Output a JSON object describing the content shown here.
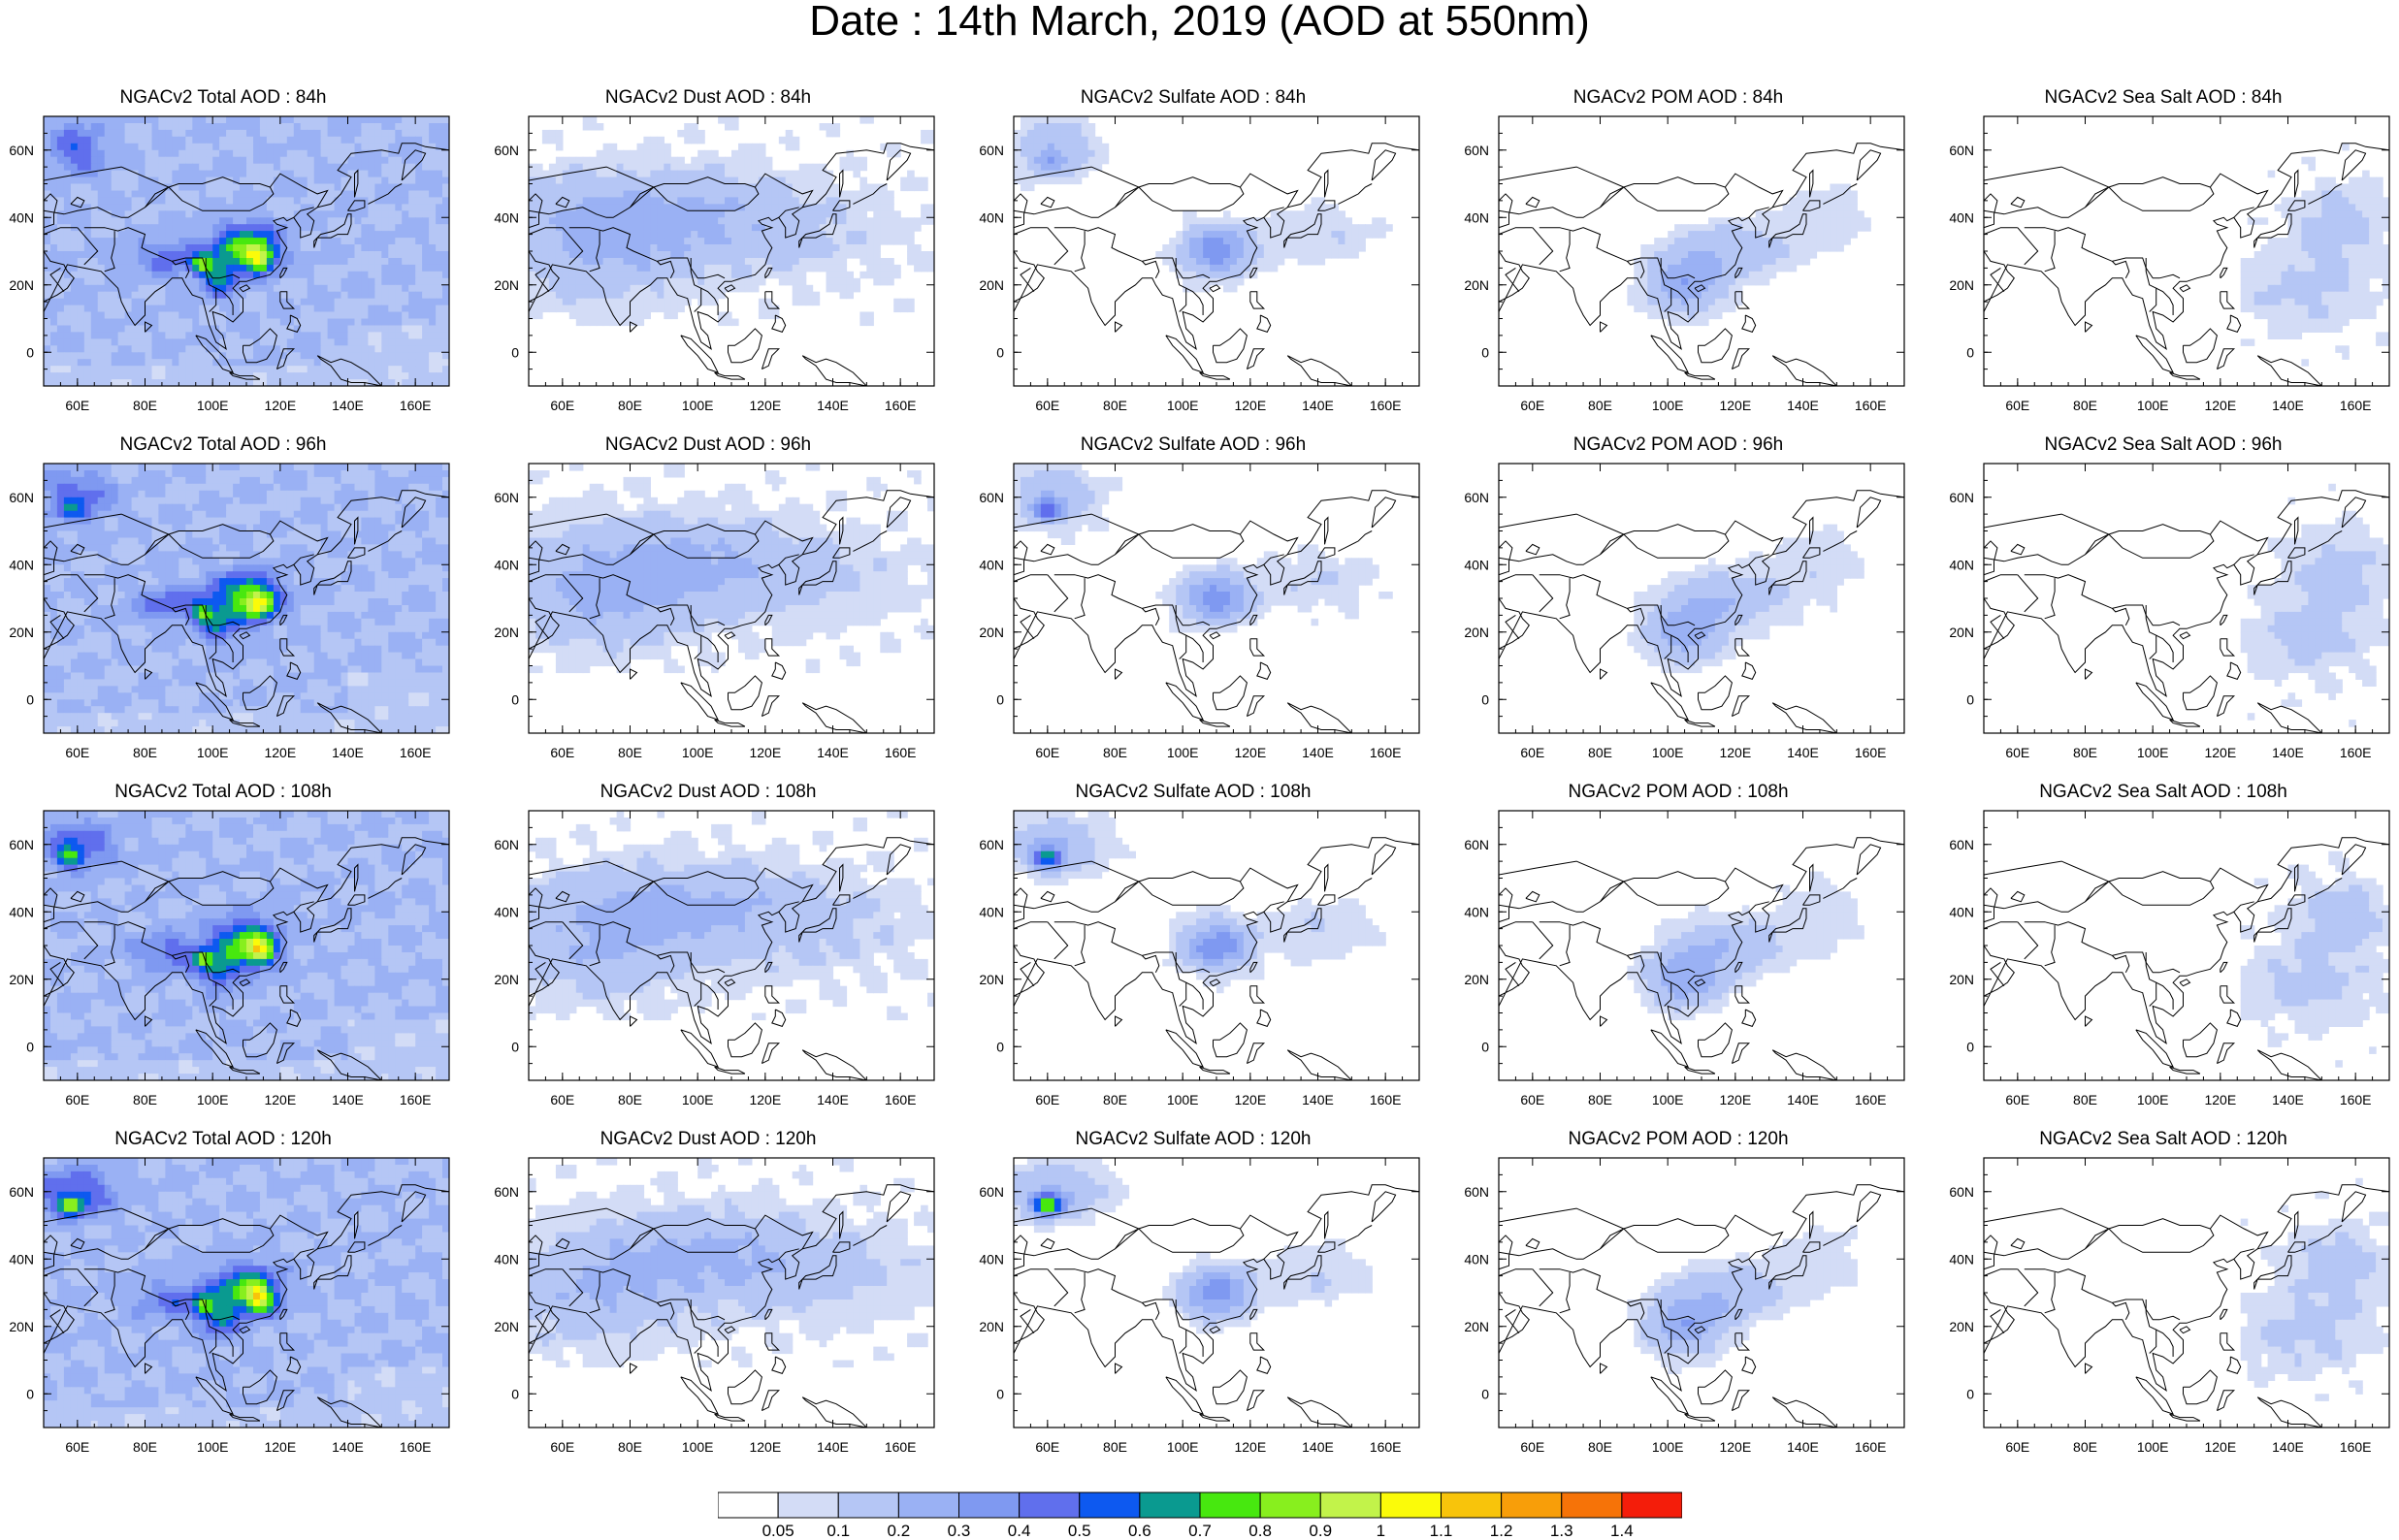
{
  "title": "Date : 14th March, 2019 (AOD at 550nm)",
  "axes": {
    "x_ticks": [
      "60E",
      "80E",
      "100E",
      "120E",
      "140E",
      "160E"
    ],
    "y_ticks": [
      "60N",
      "40N",
      "20N",
      "0"
    ]
  },
  "panels": [
    [
      "NGACv2 Total AOD : 84h",
      "NGACv2 Dust AOD : 84h",
      "NGACv2 Sulfate AOD : 84h",
      "NGACv2 POM AOD : 84h",
      "NGACv2 Sea Salt AOD : 84h"
    ],
    [
      "NGACv2 Total AOD : 96h",
      "NGACv2 Dust AOD : 96h",
      "NGACv2 Sulfate AOD : 96h",
      "NGACv2 POM AOD : 96h",
      "NGACv2 Sea Salt AOD : 96h"
    ],
    [
      "NGACv2 Total AOD : 108h",
      "NGACv2 Dust AOD : 108h",
      "NGACv2 Sulfate AOD : 108h",
      "NGACv2 POM AOD : 108h",
      "NGACv2 Sea Salt AOD : 108h"
    ],
    [
      "NGACv2 Total AOD : 120h",
      "NGACv2 Dust AOD : 120h",
      "NGACv2 Sulfate AOD : 120h",
      "NGACv2 POM AOD : 120h",
      "NGACv2 Sea Salt  AOD : 120h"
    ]
  ],
  "colorbar": {
    "colors": [
      "#ffffff",
      "#d3dcf6",
      "#b5c6f5",
      "#9ab1f4",
      "#7f99f1",
      "#606fed",
      "#0d59f0",
      "#0a9a90",
      "#47e80f",
      "#88ef1e",
      "#c2f34a",
      "#fbfb09",
      "#f8c40b",
      "#f89e09",
      "#f67308",
      "#f41d0a"
    ],
    "labels": [
      "0.05",
      "0.1",
      "0.2",
      "0.3",
      "0.4",
      "0.5",
      "0.6",
      "0.7",
      "0.8",
      "0.9",
      "1",
      "1.1",
      "1.2",
      "1.3",
      "1.4"
    ]
  }
}
